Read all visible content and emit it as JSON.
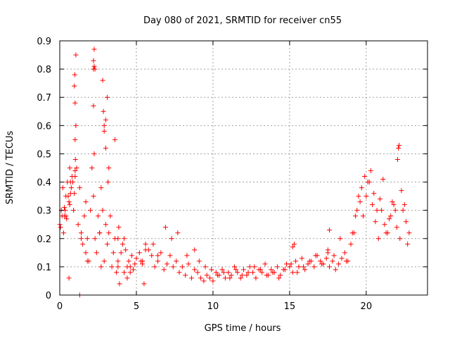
{
  "chart_data": {
    "type": "scatter",
    "title": "Day 080 of 2021, SRMTID for receiver cn55",
    "xlabel": "GPS time / hours",
    "ylabel": "SRMTID / TECUs",
    "xlim": [
      0,
      24
    ],
    "ylim": [
      0,
      0.9
    ],
    "x_ticks": [
      0,
      5,
      10,
      15,
      20
    ],
    "x_tick_labels": [
      "0",
      "5",
      "10",
      "15",
      "20"
    ],
    "y_ticks": [
      0,
      0.1,
      0.2,
      0.3,
      0.4,
      0.5,
      0.6,
      0.7,
      0.8,
      0.9
    ],
    "y_tick_labels": [
      "0",
      "0.1",
      "0.2",
      "0.3",
      "0.4",
      "0.5",
      "0.6",
      "0.7",
      "0.8",
      "0.9"
    ],
    "grid": true,
    "marker": "+",
    "color": "#ff0000",
    "series": [
      {
        "name": "SRMTID",
        "x": [
          0.0,
          0.1,
          0.2,
          0.3,
          0.4,
          0.5,
          0.6,
          0.7,
          0.8,
          0.9,
          1.0,
          1.1,
          1.2,
          1.3,
          1.4,
          1.5,
          1.6,
          1.7,
          1.8,
          1.9,
          2.0,
          2.1,
          2.2,
          2.3,
          2.4,
          2.5,
          2.6,
          2.7,
          2.8,
          2.9,
          3.0,
          3.1,
          3.2,
          3.3,
          3.4,
          3.5,
          3.6,
          3.7,
          3.8,
          3.9,
          4.0,
          4.1,
          4.2,
          4.3,
          4.4,
          4.5,
          4.6,
          4.7,
          4.8,
          4.9,
          5.0,
          5.2,
          5.4,
          5.6,
          5.8,
          6.0,
          6.2,
          6.4,
          6.6,
          6.8,
          7.0,
          7.2,
          7.4,
          7.6,
          7.8,
          8.0,
          8.2,
          8.4,
          8.6,
          8.8,
          9.0,
          9.2,
          9.4,
          9.6,
          9.8,
          10.0,
          10.2,
          10.4,
          10.6,
          10.8,
          11.0,
          11.2,
          11.4,
          11.6,
          11.8,
          12.0,
          12.2,
          12.4,
          12.6,
          12.8,
          13.0,
          13.2,
          13.4,
          13.6,
          13.8,
          14.0,
          14.2,
          14.4,
          14.6,
          14.8,
          15.0,
          15.2,
          15.4,
          15.6,
          15.8,
          16.0,
          16.2,
          16.4,
          16.6,
          16.8,
          17.0,
          17.2,
          17.4,
          17.6,
          17.8,
          18.0,
          18.2,
          18.4,
          18.6,
          18.8,
          19.0,
          19.2,
          19.4,
          19.6,
          19.8,
          20.0,
          20.2,
          20.4,
          20.6,
          20.8,
          21.0,
          21.2,
          21.4,
          21.6,
          21.8,
          22.0,
          22.2,
          22.4,
          22.6,
          22.8,
          0.05,
          0.15,
          0.25,
          0.35,
          0.45,
          0.55,
          0.65,
          0.75,
          0.85,
          0.95,
          1.0,
          1.0,
          1.02,
          0.98,
          1.05,
          2.2,
          2.2,
          2.25,
          2.25,
          2.3,
          2.8,
          2.85,
          2.9,
          3.0,
          3.1,
          0.95,
          1.0,
          1.05,
          2.2,
          2.25,
          2.9,
          3.0,
          3.15,
          3.2,
          3.6,
          3.8,
          0.6,
          0.65,
          0.7,
          1.3,
          1.4,
          1.7,
          1.8,
          2.6,
          2.7,
          4.2,
          4.4,
          4.6,
          5.3,
          5.6,
          6.1,
          6.4,
          6.9,
          7.3,
          7.7,
          8.3,
          8.8,
          9.1,
          9.5,
          9.9,
          10.3,
          10.7,
          11.1,
          11.5,
          11.9,
          12.3,
          12.7,
          13.1,
          13.5,
          13.9,
          14.3,
          14.7,
          15.1,
          15.5,
          15.9,
          16.3,
          16.7,
          17.1,
          17.5,
          17.9,
          18.3,
          18.7,
          19.1,
          19.3,
          19.5,
          19.7,
          19.9,
          20.1,
          20.3,
          20.5,
          20.7,
          20.9,
          21.1,
          21.3,
          21.5,
          21.7,
          21.9,
          22.05,
          22.1,
          22.15,
          22.3,
          22.5,
          22.7,
          17.5,
          17.6,
          15.2,
          15.3,
          5.4,
          5.5,
          3.8,
          3.85,
          0.3,
          0.4
        ],
        "y": [
          0.25,
          0.3,
          0.38,
          0.28,
          0.35,
          0.4,
          0.33,
          0.36,
          0.42,
          0.3,
          0.55,
          0.45,
          0.25,
          0.38,
          0.22,
          0.18,
          0.28,
          0.33,
          0.2,
          0.12,
          0.3,
          0.45,
          0.35,
          0.2,
          0.15,
          0.28,
          0.22,
          0.38,
          0.3,
          0.12,
          0.25,
          0.18,
          0.22,
          0.28,
          0.1,
          0.15,
          0.2,
          0.08,
          0.12,
          0.04,
          0.15,
          0.18,
          0.2,
          0.16,
          0.1,
          0.12,
          0.08,
          0.14,
          0.09,
          0.11,
          0.13,
          0.15,
          0.12,
          0.18,
          0.16,
          0.14,
          0.1,
          0.12,
          0.15,
          0.09,
          0.11,
          0.14,
          0.1,
          0.12,
          0.08,
          0.1,
          0.07,
          0.11,
          0.06,
          0.09,
          0.08,
          0.06,
          0.05,
          0.07,
          0.06,
          0.05,
          0.08,
          0.07,
          0.09,
          0.06,
          0.08,
          0.07,
          0.1,
          0.08,
          0.06,
          0.09,
          0.07,
          0.1,
          0.08,
          0.06,
          0.09,
          0.08,
          0.11,
          0.07,
          0.09,
          0.08,
          0.1,
          0.07,
          0.09,
          0.11,
          0.1,
          0.08,
          0.12,
          0.1,
          0.13,
          0.09,
          0.11,
          0.12,
          0.1,
          0.14,
          0.12,
          0.11,
          0.13,
          0.1,
          0.12,
          0.09,
          0.11,
          0.13,
          0.15,
          0.12,
          0.18,
          0.22,
          0.3,
          0.33,
          0.28,
          0.35,
          0.4,
          0.32,
          0.26,
          0.2,
          0.3,
          0.25,
          0.22,
          0.28,
          0.32,
          0.24,
          0.2,
          0.3,
          0.26,
          0.22,
          0.24,
          0.28,
          0.22,
          0.3,
          0.27,
          0.35,
          0.32,
          0.38,
          0.4,
          0.36,
          0.42,
          0.44,
          0.48,
          0.78,
          0.85,
          0.83,
          0.8,
          0.87,
          0.81,
          0.8,
          0.76,
          0.65,
          0.6,
          0.62,
          0.7,
          0.74,
          0.68,
          0.6,
          0.67,
          0.5,
          0.58,
          0.52,
          0.4,
          0.45,
          0.55,
          0.1,
          0.06,
          0.45,
          0.4,
          0.0,
          0.2,
          0.15,
          0.12,
          0.22,
          0.1,
          0.08,
          0.06,
          0.1,
          0.12,
          0.16,
          0.18,
          0.14,
          0.24,
          0.2,
          0.22,
          0.14,
          0.16,
          0.12,
          0.1,
          0.09,
          0.07,
          0.08,
          0.06,
          0.09,
          0.07,
          0.08,
          0.1,
          0.09,
          0.07,
          0.08,
          0.06,
          0.09,
          0.11,
          0.08,
          0.1,
          0.12,
          0.14,
          0.11,
          0.16,
          0.14,
          0.2,
          0.12,
          0.22,
          0.28,
          0.35,
          0.38,
          0.42,
          0.4,
          0.44,
          0.36,
          0.3,
          0.34,
          0.41,
          0.22,
          0.27,
          0.33,
          0.3,
          0.48,
          0.52,
          0.53,
          0.37,
          0.32,
          0.18,
          0.15,
          0.23,
          0.17,
          0.18,
          0.11,
          0.04,
          0.2,
          0.24,
          0.31,
          0.28
        ]
      }
    ]
  }
}
